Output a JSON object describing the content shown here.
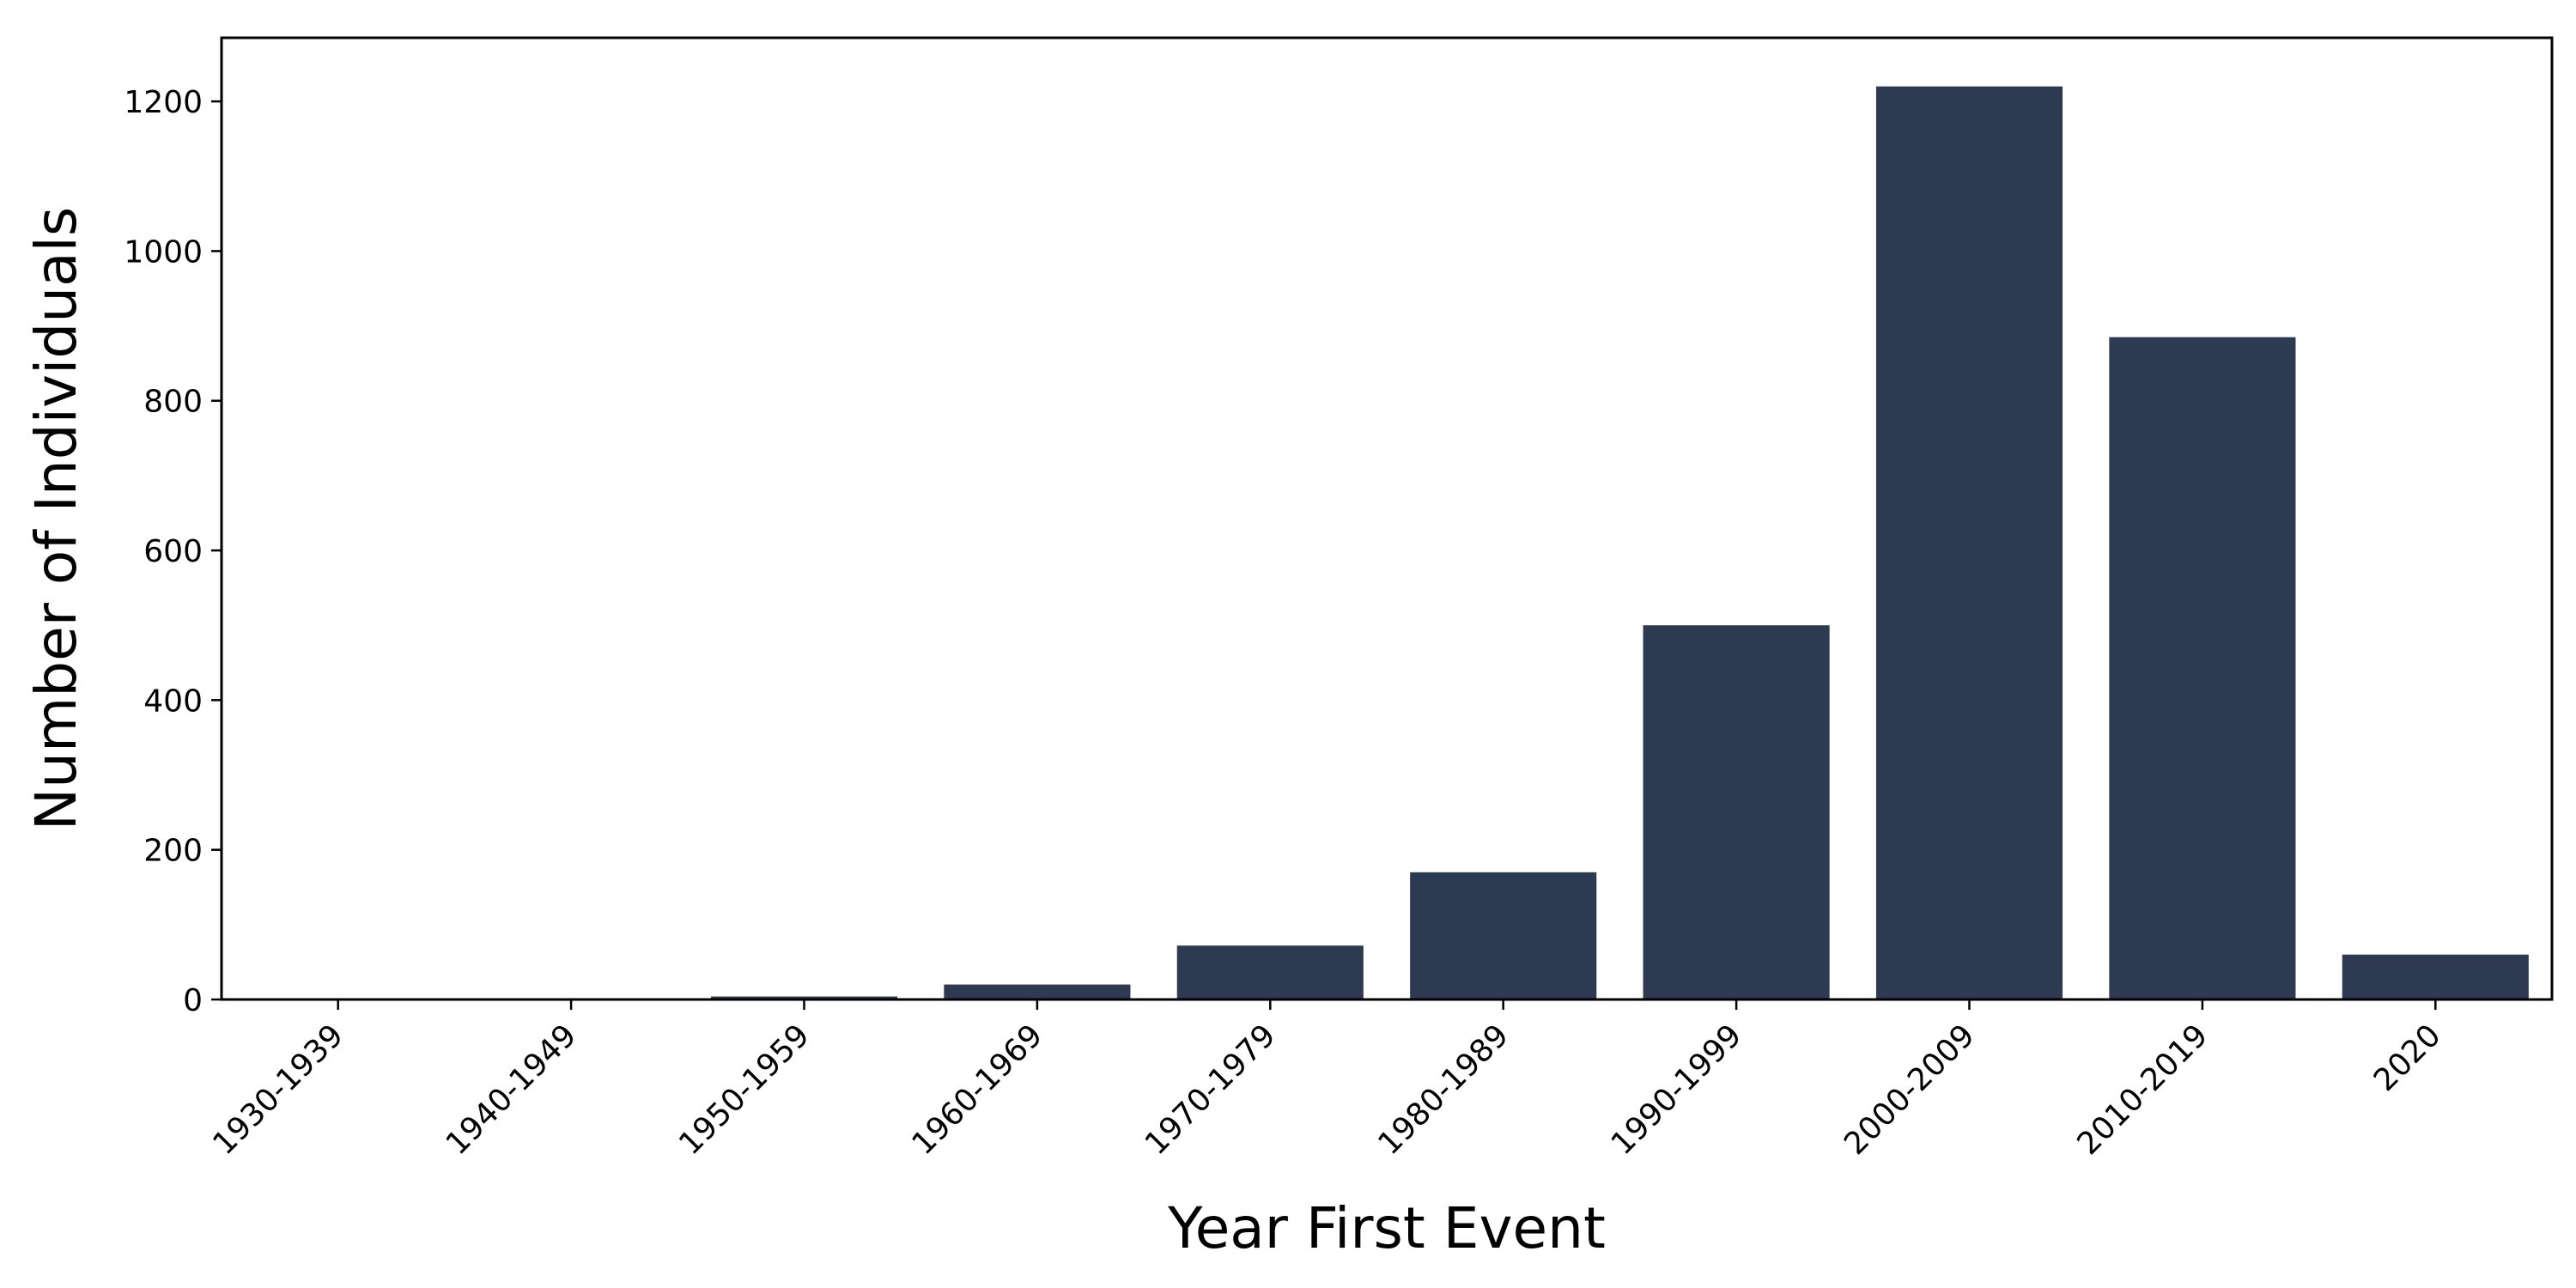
{
  "chart_data": {
    "type": "bar",
    "categories": [
      "1930-1939",
      "1940-1949",
      "1950-1959",
      "1960-1969",
      "1970-1979",
      "1980-1989",
      "1990-1999",
      "2000-2009",
      "2010-2019",
      "2020"
    ],
    "values": [
      1,
      1,
      4,
      20,
      72,
      170,
      500,
      1220,
      885,
      60
    ],
    "xlabel": "Year First Event",
    "ylabel": "Number of Individuals",
    "ylim": [
      0,
      1285
    ],
    "yticks": [
      0,
      200,
      400,
      600,
      800,
      1000,
      1200
    ],
    "grid": false,
    "legend": "none",
    "bar_color": "#2d3a52"
  }
}
